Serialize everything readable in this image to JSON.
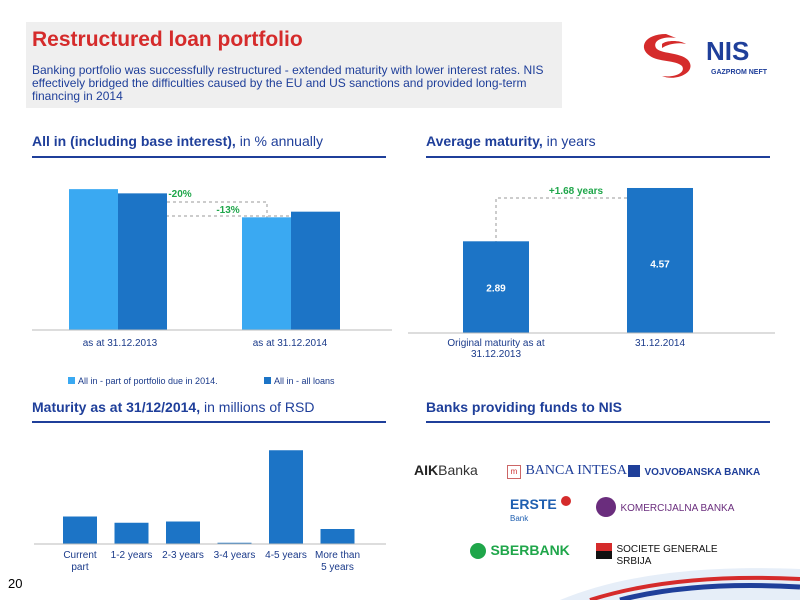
{
  "header": {
    "title": "Restructured loan portfolio",
    "subtitle": "Banking portfolio was successfully restructured - extended maturity with lower interest rates. NIS effectively bridged the difficulties caused by the EU and US sanctions and provided long-term financing in 2014"
  },
  "logo": {
    "name": "NIS",
    "tagline": "GAZPROM NEFT"
  },
  "sections": {
    "interest": {
      "bold": "All in (including base interest),",
      "normal": " in % annually"
    },
    "maturity": {
      "bold": "Average maturity,",
      "normal": " in years"
    },
    "schedule": {
      "bold": "Maturity as at 31/12/2014,",
      "normal": " in millions of RSD"
    },
    "banks": {
      "bold": "Banks providing funds to NIS"
    }
  },
  "chart_data": [
    {
      "type": "bar",
      "categories": [
        "as at 31.12.2013",
        "as at 31.12.2014"
      ],
      "series": [
        {
          "name": "All in - part of portfolio due in 2014.",
          "values": [
            100,
            80
          ],
          "color": "#3aa9f2"
        },
        {
          "name": "All in - all loans",
          "values": [
            97,
            84
          ],
          "color": "#1c74c6"
        }
      ],
      "ylim": [
        0,
        115
      ],
      "annotations": [
        "-20%",
        "-13%"
      ],
      "legend": "bottom"
    },
    {
      "type": "bar",
      "categories": [
        "Original maturity as at 31.12.2013",
        "31.12.2014"
      ],
      "values": [
        2.89,
        4.57
      ],
      "data_labels": [
        "2.89",
        "4.57"
      ],
      "annotations": [
        "+1.68 years"
      ],
      "ylim": [
        0,
        5.2
      ],
      "color": "#1c74c6"
    },
    {
      "type": "bar",
      "categories": [
        "Current part",
        "1-2 years",
        "2-3 years",
        "3-4 years",
        "4-5 years",
        "More than 5 years"
      ],
      "values": [
        22,
        17,
        18,
        1,
        75,
        12
      ],
      "ylim": [
        0,
        80
      ],
      "color": "#1c74c6"
    }
  ],
  "banks": [
    {
      "id": "aik",
      "label": "AIK",
      "sub": "Banka"
    },
    {
      "id": "intesa",
      "label": "BANCA INTESA"
    },
    {
      "id": "vojvodjanska",
      "label": "VOJVOĐANSKA BANKA"
    },
    {
      "id": "erste",
      "label": "ERSTE",
      "sub": "Bank"
    },
    {
      "id": "komercijalna",
      "label": "KOMERCIJALNA BANKA"
    },
    {
      "id": "sberbank",
      "label": "SBERBANK"
    },
    {
      "id": "societe",
      "label": "SOCIETE GENERALE",
      "sub": "SRBIJA"
    }
  ],
  "colors": {
    "accent_red": "#d52b2b",
    "navy": "#1f3f9a",
    "bar_light": "#3aa9f2",
    "bar_dark": "#1c74c6",
    "green": "#1fa64a"
  },
  "page": {
    "number": "20"
  }
}
